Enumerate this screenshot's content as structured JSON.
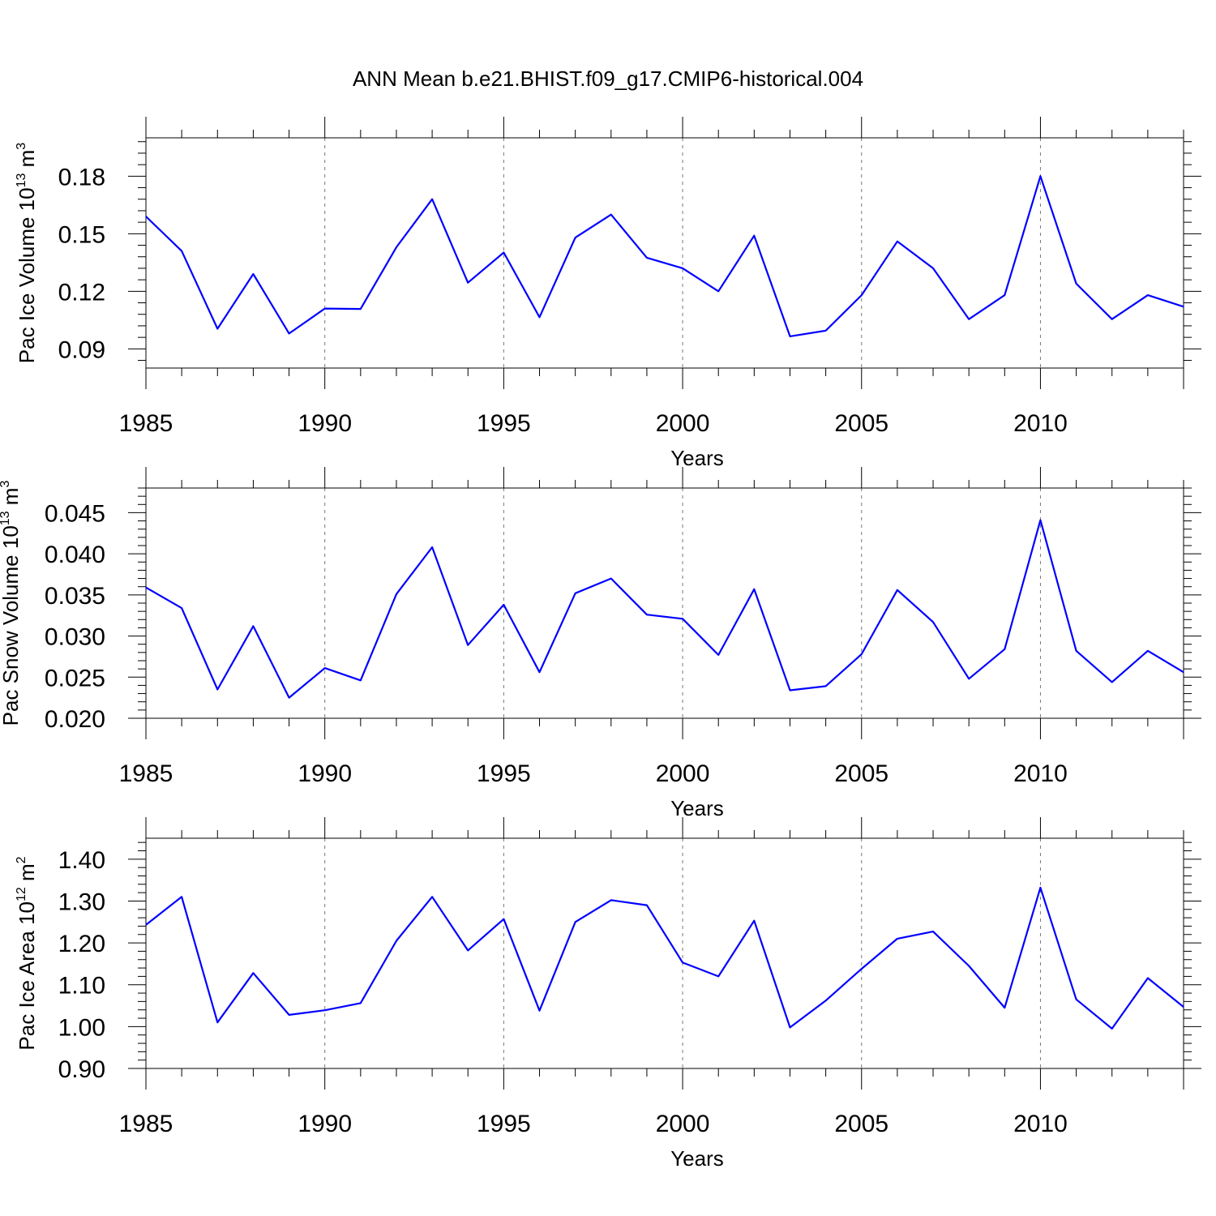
{
  "title": "ANN Mean b.e21.BHIST.f09_g17.CMIP6-historical.004",
  "chart_data": [
    {
      "type": "line",
      "name": "pac-ice-volume",
      "title": "",
      "xlabel": "Years",
      "ylabel": {
        "text": "Pac Ice Volume 10",
        "sup": "13",
        "unit": " m",
        "unit_sup": "3"
      },
      "xlim": [
        1985,
        2014
      ],
      "ylim": [
        0.08,
        0.2
      ],
      "yticks": [
        "0.09",
        "0.12",
        "0.15",
        "0.18"
      ],
      "xticks": [
        "1985",
        "1990",
        "1995",
        "2000",
        "2005",
        "2010"
      ],
      "x": [
        1985,
        1986,
        1987,
        1988,
        1989,
        1990,
        1991,
        1992,
        1993,
        1994,
        1995,
        1996,
        1997,
        1998,
        1999,
        2000,
        2001,
        2002,
        2003,
        2004,
        2005,
        2006,
        2007,
        2008,
        2009,
        2010,
        2011,
        2012,
        2013,
        2014
      ],
      "values": [
        0.159,
        0.141,
        0.1005,
        0.129,
        0.098,
        0.111,
        0.1108,
        0.143,
        0.168,
        0.1245,
        0.1402,
        0.1065,
        0.148,
        0.16,
        0.1375,
        0.132,
        0.12,
        0.149,
        0.0965,
        0.0995,
        0.118,
        0.146,
        0.132,
        0.1055,
        0.118,
        0.18,
        0.124,
        0.1055,
        0.118,
        0.112
      ]
    },
    {
      "type": "line",
      "name": "pac-snow-volume",
      "title": "",
      "xlabel": "Years",
      "ylabel": {
        "text": "Pac Snow Volume 10",
        "sup": "13",
        "unit": " m",
        "unit_sup": "3"
      },
      "xlim": [
        1985,
        2014
      ],
      "ylim": [
        0.02,
        0.048
      ],
      "yticks": [
        "0.020",
        "0.025",
        "0.030",
        "0.035",
        "0.040",
        "0.045"
      ],
      "xticks": [
        "1985",
        "1990",
        "1995",
        "2000",
        "2005",
        "2010"
      ],
      "x": [
        1985,
        1986,
        1987,
        1988,
        1989,
        1990,
        1991,
        1992,
        1993,
        1994,
        1995,
        1996,
        1997,
        1998,
        1999,
        2000,
        2001,
        2002,
        2003,
        2004,
        2005,
        2006,
        2007,
        2008,
        2009,
        2010,
        2011,
        2012,
        2013,
        2014
      ],
      "values": [
        0.0359,
        0.0334,
        0.0235,
        0.0312,
        0.0225,
        0.0261,
        0.0246,
        0.0351,
        0.0408,
        0.0289,
        0.0338,
        0.0256,
        0.0352,
        0.037,
        0.0326,
        0.0321,
        0.0277,
        0.0357,
        0.0234,
        0.0239,
        0.0278,
        0.0356,
        0.0317,
        0.0248,
        0.0284,
        0.0441,
        0.0282,
        0.0244,
        0.0282,
        0.0256
      ]
    },
    {
      "type": "line",
      "name": "pac-ice-area",
      "title": "",
      "xlabel": "Years",
      "ylabel": {
        "text": "Pac Ice Area 10",
        "sup": "12",
        "unit": " m",
        "unit_sup": "2"
      },
      "xlim": [
        1985,
        2014
      ],
      "ylim": [
        0.9,
        1.45
      ],
      "yticks": [
        "0.90",
        "1.00",
        "1.10",
        "1.20",
        "1.30",
        "1.40"
      ],
      "xticks": [
        "1985",
        "1990",
        "1995",
        "2000",
        "2005",
        "2010"
      ],
      "x": [
        1985,
        1986,
        1987,
        1988,
        1989,
        1990,
        1991,
        1992,
        1993,
        1994,
        1995,
        1996,
        1997,
        1998,
        1999,
        2000,
        2001,
        2002,
        2003,
        2004,
        2005,
        2006,
        2007,
        2008,
        2009,
        2010,
        2011,
        2012,
        2013,
        2014
      ],
      "values": [
        1.243,
        1.31,
        1.01,
        1.128,
        1.028,
        1.039,
        1.056,
        1.205,
        1.31,
        1.182,
        1.257,
        1.038,
        1.25,
        1.302,
        1.29,
        1.153,
        1.12,
        1.253,
        0.998,
        1.062,
        1.138,
        1.21,
        1.227,
        1.145,
        1.045,
        1.332,
        1.065,
        0.995,
        1.116,
        1.047
      ]
    }
  ]
}
